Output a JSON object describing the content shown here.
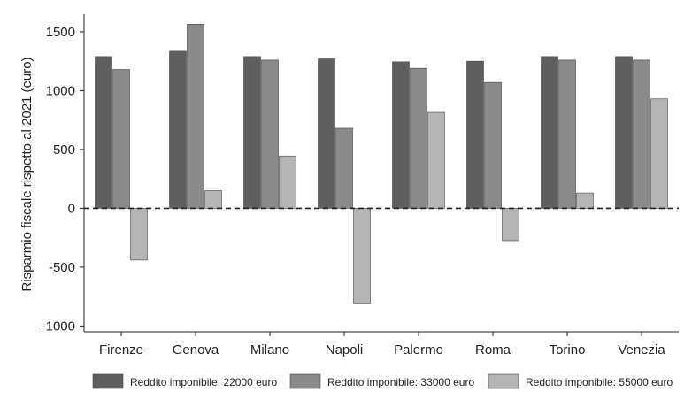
{
  "chart_data": {
    "type": "bar",
    "title": "",
    "xlabel": "",
    "ylabel": "Risparmio fiscale rispetto al 2021 (euro)",
    "ylim": [
      -1050,
      1650
    ],
    "yticks": [
      1500,
      1000,
      500,
      0,
      -500,
      -1000
    ],
    "zero_line": "dashed",
    "grid": false,
    "legend_position": "bottom",
    "categories": [
      "Firenze",
      "Genova",
      "Milano",
      "Napoli",
      "Palermo",
      "Roma",
      "Torino",
      "Venezia"
    ],
    "series": [
      {
        "name": "Reddito imponibile: 22000 euro",
        "color": "#5f5f5f",
        "values": [
          1290,
          1335,
          1290,
          1270,
          1245,
          1250,
          1290,
          1290
        ]
      },
      {
        "name": "Reddito imponibile: 33000 euro",
        "color": "#8a8a8a",
        "values": [
          1180,
          1565,
          1260,
          680,
          1190,
          1070,
          1260,
          1260
        ]
      },
      {
        "name": "Reddito imponibile: 55000 euro",
        "color": "#b5b5b5",
        "values": [
          -440,
          150,
          445,
          -805,
          815,
          -275,
          130,
          930
        ]
      }
    ]
  }
}
